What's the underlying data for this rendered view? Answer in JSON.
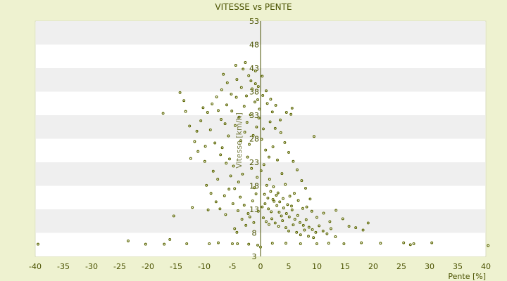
{
  "chart_data": {
    "type": "scatter",
    "title": "VITESSE vs PENTE",
    "xlabel": "Pente [%]",
    "ylabel": "Vitesse [km/h]",
    "xlim": [
      -40,
      40
    ],
    "ylim": [
      3,
      53
    ],
    "xticks": [
      -40,
      -35,
      -30,
      -25,
      -20,
      -15,
      -10,
      -5,
      0,
      5,
      10,
      15,
      20,
      25,
      30,
      35,
      40
    ],
    "yticks": [
      3,
      8,
      13,
      18,
      23,
      28,
      33,
      38,
      43,
      48,
      53
    ],
    "grid": "alternating horizontal bands",
    "colors": {
      "marker": "#5b6600",
      "text": "#4a5200",
      "band": "#efefef",
      "background": "#eef2d0"
    },
    "points": [
      [
        -39.5,
        5.6
      ],
      [
        -23.5,
        6.3
      ],
      [
        -20.4,
        5.6
      ],
      [
        -17.1,
        5.6
      ],
      [
        -16.1,
        6.6
      ],
      [
        -13.1,
        5.7
      ],
      [
        -9.1,
        5.7
      ],
      [
        -7.5,
        5.9
      ],
      [
        -5.0,
        5.7
      ],
      [
        -4.1,
        5.7
      ],
      [
        -2.1,
        5.6
      ],
      [
        -0.5,
        5.4
      ],
      [
        0.0,
        5.0
      ],
      [
        2.1,
        5.8
      ],
      [
        4.5,
        5.8
      ],
      [
        7.1,
        5.7
      ],
      [
        10.0,
        5.7
      ],
      [
        12.1,
        5.8
      ],
      [
        14.8,
        5.7
      ],
      [
        17.9,
        5.9
      ],
      [
        21.3,
        5.8
      ],
      [
        25.4,
        5.9
      ],
      [
        26.6,
        5.5
      ],
      [
        27.2,
        5.7
      ],
      [
        30.4,
        5.9
      ],
      [
        40.4,
        5.3
      ],
      [
        -15.4,
        11.6
      ],
      [
        -12.1,
        13.4
      ],
      [
        -9.3,
        12.9
      ],
      [
        -6.2,
        11.9
      ],
      [
        -4.6,
        8.9
      ],
      [
        -4.2,
        8.1
      ],
      [
        -17.3,
        33.4
      ],
      [
        -14.3,
        37.8
      ],
      [
        -13.6,
        36.1
      ],
      [
        -13.3,
        33.8
      ],
      [
        -12.6,
        30.7
      ],
      [
        -11.3,
        29.6
      ],
      [
        -10.2,
        34.6
      ],
      [
        -9.8,
        26.4
      ],
      [
        -7.5,
        34.0
      ],
      [
        -6.9,
        38.4
      ],
      [
        -6.6,
        41.7
      ],
      [
        -5.9,
        39.9
      ],
      [
        -5.2,
        37.5
      ],
      [
        -4.4,
        43.6
      ],
      [
        -4.2,
        40.6
      ],
      [
        -3.1,
        42.8
      ],
      [
        -2.7,
        44.2
      ],
      [
        -2.1,
        41.4
      ],
      [
        -1.5,
        38.6
      ],
      [
        -0.9,
        39.7
      ],
      [
        -0.5,
        36.3
      ],
      [
        -0.2,
        34.3
      ],
      [
        0.4,
        37.2
      ],
      [
        1.2,
        35.5
      ],
      [
        1.7,
        31.6
      ],
      [
        2.1,
        33.7
      ],
      [
        2.6,
        30.2
      ],
      [
        3.5,
        32.0
      ],
      [
        4.6,
        33.6
      ],
      [
        5.6,
        34.5
      ],
      [
        5.4,
        33.2
      ],
      [
        9.5,
        28.5
      ],
      [
        -12.4,
        23.8
      ],
      [
        -11.1,
        25.3
      ],
      [
        -9.9,
        23.2
      ],
      [
        -8.4,
        21.1
      ],
      [
        -7.6,
        19.4
      ],
      [
        -6.8,
        26.1
      ],
      [
        -5.5,
        23.7
      ],
      [
        -4.8,
        22.2
      ],
      [
        -3.9,
        18.8
      ],
      [
        -3.2,
        20.5
      ],
      [
        -2.3,
        24.1
      ],
      [
        -1.6,
        21.7
      ],
      [
        -1.1,
        17.6
      ],
      [
        -0.6,
        19.8
      ],
      [
        0.1,
        21.2
      ],
      [
        0.6,
        22.5
      ],
      [
        1.1,
        18.1
      ],
      [
        1.6,
        19.4
      ],
      [
        2.3,
        17.8
      ],
      [
        3.1,
        16.5
      ],
      [
        3.8,
        20.6
      ],
      [
        4.4,
        18.3
      ],
      [
        5.2,
        15.8
      ],
      [
        6.0,
        16.4
      ],
      [
        6.7,
        14.9
      ],
      [
        7.5,
        13.2
      ],
      [
        8.2,
        13.5
      ],
      [
        9.1,
        12.6
      ],
      [
        10.0,
        11.3
      ],
      [
        11.2,
        12.2
      ],
      [
        12.3,
        10.4
      ],
      [
        13.4,
        12.8
      ],
      [
        14.6,
        11.0
      ],
      [
        15.7,
        9.4
      ],
      [
        16.9,
        9.1
      ],
      [
        18.2,
        8.6
      ],
      [
        19.1,
        10.1
      ],
      [
        0.8,
        14.2
      ],
      [
        1.4,
        13.1
      ],
      [
        1.9,
        12.5
      ],
      [
        2.4,
        14.7
      ],
      [
        2.9,
        13.8
      ],
      [
        3.3,
        12.4
      ],
      [
        3.7,
        11.6
      ],
      [
        4.1,
        13.3
      ],
      [
        4.6,
        12.1
      ],
      [
        5.1,
        11.4
      ],
      [
        5.6,
        12.9
      ],
      [
        6.1,
        10.9
      ],
      [
        6.6,
        11.7
      ],
      [
        7.0,
        10.2
      ],
      [
        7.6,
        9.6
      ],
      [
        8.1,
        10.8
      ],
      [
        8.6,
        9.2
      ],
      [
        9.2,
        8.7
      ],
      [
        9.8,
        8.1
      ],
      [
        10.4,
        9.5
      ],
      [
        11.1,
        8.4
      ],
      [
        11.8,
        7.8
      ],
      [
        12.5,
        8.9
      ],
      [
        13.3,
        7.2
      ],
      [
        0.5,
        11.2
      ],
      [
        1.0,
        10.4
      ],
      [
        1.5,
        9.8
      ],
      [
        2.0,
        11.0
      ],
      [
        2.6,
        10.1
      ],
      [
        3.2,
        9.4
      ],
      [
        3.9,
        10.6
      ],
      [
        4.5,
        9.1
      ],
      [
        5.0,
        8.4
      ],
      [
        5.8,
        9.7
      ],
      [
        6.4,
        8.1
      ],
      [
        7.1,
        7.6
      ],
      [
        7.8,
        8.6
      ],
      [
        8.5,
        7.3
      ],
      [
        9.4,
        7.0
      ],
      [
        0.3,
        13.5
      ],
      [
        0.7,
        16.2
      ],
      [
        1.3,
        15.4
      ],
      [
        1.8,
        16.8
      ],
      [
        2.2,
        15.1
      ],
      [
        2.8,
        16.0
      ],
      [
        3.4,
        14.6
      ],
      [
        4.0,
        15.3
      ],
      [
        4.8,
        14.0
      ],
      [
        5.5,
        13.7
      ],
      [
        -3.5,
        27.6
      ],
      [
        -2.8,
        29.4
      ],
      [
        -2.0,
        26.8
      ],
      [
        -1.3,
        28.7
      ],
      [
        -0.7,
        30.5
      ],
      [
        0.2,
        27.9
      ],
      [
        0.9,
        25.6
      ],
      [
        1.5,
        24.1
      ],
      [
        2.2,
        26.3
      ],
      [
        3.0,
        23.5
      ],
      [
        -4.5,
        30.8
      ],
      [
        -3.8,
        32.6
      ],
      [
        -2.9,
        34.9
      ],
      [
        -2.4,
        31.5
      ],
      [
        -1.8,
        33.1
      ],
      [
        -1.0,
        35.8
      ],
      [
        -0.3,
        32.4
      ],
      [
        0.5,
        30.1
      ],
      [
        -6.3,
        31.2
      ],
      [
        -5.7,
        28.6
      ],
      [
        -8.9,
        29.9
      ],
      [
        -8.1,
        27.1
      ],
      [
        -7.1,
        24.6
      ],
      [
        -6.1,
        22.8
      ],
      [
        -5.3,
        20.1
      ],
      [
        -4.6,
        17.4
      ],
      [
        -3.6,
        15.6
      ],
      [
        -2.9,
        13.9
      ],
      [
        -2.2,
        12.1
      ],
      [
        -1.4,
        14.8
      ],
      [
        -0.8,
        16.3
      ],
      [
        -9.6,
        18.1
      ],
      [
        -8.8,
        16.4
      ],
      [
        -7.9,
        14.6
      ],
      [
        -7.2,
        13.1
      ],
      [
        -6.4,
        15.9
      ],
      [
        -5.6,
        17.3
      ],
      [
        -4.9,
        14.2
      ],
      [
        -4.0,
        12.7
      ],
      [
        -3.3,
        10.9
      ],
      [
        -2.6,
        9.6
      ],
      [
        -1.9,
        11.4
      ],
      [
        -1.2,
        10.2
      ],
      [
        -0.4,
        12.6
      ],
      [
        -11.7,
        27.4
      ],
      [
        -10.6,
        31.8
      ],
      [
        -9.4,
        33.6
      ],
      [
        -8.6,
        35.4
      ],
      [
        -7.8,
        36.9
      ],
      [
        -7.0,
        32.1
      ],
      [
        -6.0,
        35.2
      ],
      [
        -5.1,
        33.9
      ],
      [
        -4.3,
        36.8
      ],
      [
        -3.4,
        38.9
      ],
      [
        -2.5,
        37.1
      ],
      [
        -1.7,
        40.3
      ],
      [
        -0.9,
        42.4
      ],
      [
        -0.4,
        39.1
      ],
      [
        0.3,
        41.3
      ],
      [
        1.0,
        38.2
      ],
      [
        1.8,
        36.4
      ],
      [
        2.7,
        35.1
      ],
      [
        3.6,
        29.3
      ],
      [
        4.3,
        27.2
      ],
      [
        5.0,
        25.1
      ],
      [
        5.8,
        23.2
      ],
      [
        6.5,
        21.4
      ],
      [
        7.3,
        19.1
      ],
      [
        8.0,
        17.5
      ],
      [
        8.8,
        15.2
      ]
    ]
  }
}
